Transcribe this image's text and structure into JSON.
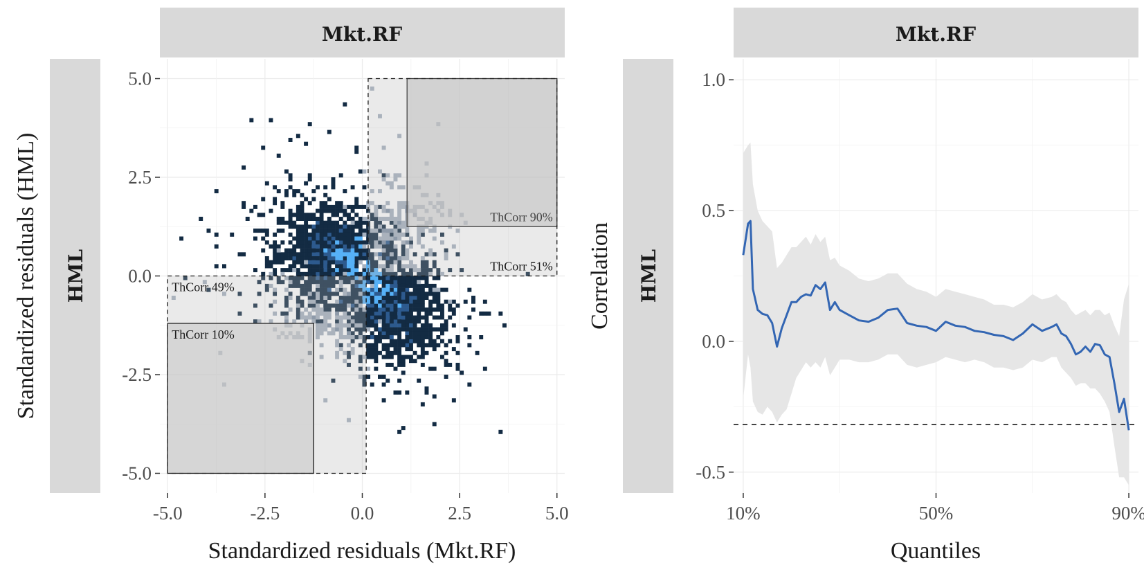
{
  "chart_data": [
    {
      "type": "heatmap",
      "strip_top": "Mkt.RF",
      "strip_side": "HML",
      "xlabel": "Standardized residuals (Mkt.RF)",
      "ylabel": "Standardized residuals (HML)",
      "xlim": [
        -5.2,
        5.2
      ],
      "ylim": [
        -5.5,
        5.5
      ],
      "x_ticks": [
        -5.0,
        -2.5,
        0.0,
        2.5,
        5.0
      ],
      "x_tick_labels": [
        "-5.0",
        "-2.5",
        "0.0",
        "2.5",
        "5.0"
      ],
      "y_ticks": [
        -5.0,
        -2.5,
        0.0,
        2.5,
        5.0
      ],
      "y_tick_labels": [
        "-5.0",
        "-2.5",
        "0.0",
        "2.5",
        "5.0"
      ],
      "grid": true,
      "colors": {
        "dark": "#132b43",
        "mid": "#2d5a8e",
        "bright": "#56b1f7",
        "grey": "#8090a6",
        "lightgrey": "#a7b2c0"
      },
      "regions": [
        {
          "label": "ThCorr 90%",
          "x": [
            1.15,
            5.0
          ],
          "y": [
            1.25,
            5.0
          ],
          "style": "solid"
        },
        {
          "label": "ThCorr 51%",
          "x": [
            0.15,
            5.0
          ],
          "y": [
            0.0,
            5.0
          ],
          "style": "dashed"
        },
        {
          "label": "ThCorr 49%",
          "x": [
            -5.0,
            0.1
          ],
          "y": [
            -5.0,
            0.0
          ],
          "style": "dashed"
        },
        {
          "label": "ThCorr 10%",
          "x": [
            -5.0,
            -1.25
          ],
          "y": [
            -5.0,
            -1.2
          ],
          "style": "solid"
        }
      ],
      "clusters": [
        {
          "cx": -0.9,
          "cy": 0.65,
          "sx": 0.65,
          "sy": 0.55,
          "n": 900,
          "tone": "dark"
        },
        {
          "cx": 0.85,
          "cy": -0.9,
          "sx": 0.55,
          "sy": 0.6,
          "n": 850,
          "tone": "dark"
        },
        {
          "cx": -1.4,
          "cy": 0.9,
          "sx": 1.0,
          "sy": 1.0,
          "n": 220,
          "tone": "dark"
        },
        {
          "cx": 1.3,
          "cy": -1.2,
          "sx": 0.9,
          "sy": 1.0,
          "n": 200,
          "tone": "dark"
        },
        {
          "cx": 0.7,
          "cy": 0.9,
          "sx": 0.65,
          "sy": 0.7,
          "n": 380,
          "tone": "grey"
        },
        {
          "cx": -0.7,
          "cy": -0.75,
          "sx": 0.7,
          "sy": 0.6,
          "n": 360,
          "tone": "grey"
        },
        {
          "cx": -0.3,
          "cy": 0.45,
          "sx": 0.25,
          "sy": 0.25,
          "n": 40,
          "tone": "mid"
        },
        {
          "cx": 0.35,
          "cy": -0.35,
          "sx": 0.25,
          "sy": 0.25,
          "n": 40,
          "tone": "mid"
        }
      ],
      "outliers": [
        [
          -2.9,
          3.95,
          "dark"
        ],
        [
          -2.4,
          3.95,
          "dark"
        ],
        [
          -1.4,
          3.85,
          "dark"
        ],
        [
          -0.5,
          4.35,
          "dark"
        ],
        [
          -0.9,
          3.6,
          "dark"
        ],
        [
          -1.7,
          3.5,
          "dark"
        ],
        [
          -2.2,
          3.0,
          "dark"
        ],
        [
          -3.1,
          2.75,
          "dark"
        ],
        [
          -4.2,
          1.45,
          "dark"
        ],
        [
          -3.95,
          1.1,
          "dark"
        ],
        [
          -4.7,
          0.95,
          "dark"
        ],
        [
          -3.8,
          0.75,
          "dark"
        ],
        [
          -3.6,
          0.2,
          "dark"
        ],
        [
          -3.2,
          0.6,
          "dark"
        ],
        [
          -0.2,
          3.1,
          "dark"
        ],
        [
          0.0,
          2.2,
          "dark"
        ],
        [
          -0.6,
          2.5,
          "dark"
        ],
        [
          1.4,
          2.2,
          "grey"
        ],
        [
          1.6,
          2.5,
          "lightgrey"
        ],
        [
          2.0,
          1.9,
          "lightgrey"
        ],
        [
          2.2,
          1.5,
          "lightgrey"
        ],
        [
          2.6,
          1.3,
          "lightgrey"
        ],
        [
          0.9,
          3.5,
          "grey"
        ],
        [
          0.4,
          4.0,
          "lightgrey"
        ],
        [
          0.2,
          4.8,
          "lightgrey"
        ],
        [
          0.55,
          3.2,
          "grey"
        ],
        [
          -4.9,
          -0.55,
          "lightgrey"
        ],
        [
          -4.1,
          -0.15,
          "lightgrey"
        ],
        [
          -3.6,
          -0.5,
          "lightgrey"
        ],
        [
          -3.7,
          -2.0,
          "lightgrey"
        ],
        [
          -3.6,
          -2.75,
          "lightgrey"
        ],
        [
          -2.0,
          -1.6,
          "lightgrey"
        ],
        [
          -1.6,
          -2.15,
          "lightgrey"
        ],
        [
          -1.7,
          -1.5,
          "grey"
        ],
        [
          -1.1,
          -1.3,
          "grey"
        ],
        [
          -1.0,
          -3.2,
          "lightgrey"
        ],
        [
          -0.4,
          -3.7,
          "lightgrey"
        ],
        [
          -0.1,
          -2.6,
          "lightgrey"
        ],
        [
          0.1,
          -2.4,
          "grey"
        ],
        [
          0.5,
          -3.2,
          "dark"
        ],
        [
          0.9,
          -3.0,
          "dark"
        ],
        [
          1.0,
          -3.85,
          "dark"
        ],
        [
          1.5,
          -3.3,
          "dark"
        ],
        [
          1.6,
          -2.9,
          "dark"
        ],
        [
          1.8,
          -3.1,
          "dark"
        ],
        [
          2.1,
          -2.6,
          "dark"
        ],
        [
          2.2,
          -1.7,
          "dark"
        ],
        [
          2.6,
          -1.4,
          "dark"
        ],
        [
          2.7,
          -2.75,
          "dark"
        ],
        [
          3.1,
          -2.35,
          "dark"
        ],
        [
          3.1,
          -1.0,
          "dark"
        ],
        [
          2.9,
          -0.6,
          "dark"
        ],
        [
          3.5,
          -4.0,
          "dark"
        ],
        [
          1.7,
          -1.6,
          "dark"
        ],
        [
          0.3,
          -2.8,
          "dark"
        ],
        [
          2.4,
          -0.9,
          "dark"
        ]
      ]
    },
    {
      "type": "line",
      "strip_top": "Mkt.RF",
      "strip_side": "HML",
      "xlabel": "Quantiles",
      "ylabel": "Correlation",
      "xlim": [
        0.08,
        0.92
      ],
      "ylim": [
        -0.58,
        1.08
      ],
      "x_ticks": [
        0.1,
        0.5,
        0.9
      ],
      "x_tick_labels": [
        "10%",
        "50%",
        "90%"
      ],
      "y_ticks": [
        -0.5,
        0.0,
        0.5,
        1.0
      ],
      "y_tick_labels": [
        "-0.5",
        "0.0",
        "0.5",
        "1.0"
      ],
      "grid": true,
      "line_color": "#3366b3",
      "band_color": "#e6e6e6",
      "reference_line": {
        "y": -0.318,
        "style": "dashed"
      },
      "x": [
        0.1,
        0.11,
        0.115,
        0.12,
        0.13,
        0.14,
        0.15,
        0.16,
        0.17,
        0.18,
        0.19,
        0.2,
        0.21,
        0.22,
        0.23,
        0.24,
        0.25,
        0.26,
        0.27,
        0.28,
        0.29,
        0.3,
        0.32,
        0.34,
        0.36,
        0.38,
        0.4,
        0.42,
        0.44,
        0.46,
        0.48,
        0.5,
        0.52,
        0.54,
        0.56,
        0.58,
        0.6,
        0.62,
        0.64,
        0.66,
        0.68,
        0.7,
        0.72,
        0.74,
        0.75,
        0.76,
        0.77,
        0.78,
        0.79,
        0.8,
        0.81,
        0.82,
        0.83,
        0.84,
        0.85,
        0.86,
        0.87,
        0.88,
        0.89,
        0.9
      ],
      "y": [
        0.33,
        0.45,
        0.46,
        0.2,
        0.12,
        0.105,
        0.1,
        0.07,
        -0.02,
        0.05,
        0.1,
        0.15,
        0.15,
        0.17,
        0.18,
        0.175,
        0.215,
        0.2,
        0.225,
        0.12,
        0.15,
        0.12,
        0.1,
        0.08,
        0.075,
        0.09,
        0.12,
        0.125,
        0.07,
        0.06,
        0.055,
        0.04,
        0.075,
        0.06,
        0.055,
        0.04,
        0.035,
        0.025,
        0.02,
        0.005,
        0.03,
        0.065,
        0.04,
        0.055,
        0.065,
        0.03,
        0.02,
        -0.01,
        -0.05,
        -0.04,
        -0.02,
        -0.04,
        -0.01,
        -0.015,
        -0.05,
        -0.06,
        -0.16,
        -0.27,
        -0.22,
        -0.34
      ],
      "lower": [
        -0.22,
        -0.05,
        -0.1,
        -0.23,
        -0.27,
        -0.28,
        -0.25,
        -0.27,
        -0.31,
        -0.28,
        -0.26,
        -0.2,
        -0.14,
        -0.11,
        -0.08,
        -0.1,
        -0.08,
        -0.1,
        -0.06,
        -0.13,
        -0.1,
        -0.07,
        -0.07,
        -0.08,
        -0.08,
        -0.07,
        -0.05,
        -0.05,
        -0.09,
        -0.1,
        -0.09,
        -0.08,
        -0.06,
        -0.07,
        -0.08,
        -0.07,
        -0.08,
        -0.1,
        -0.1,
        -0.11,
        -0.1,
        -0.07,
        -0.08,
        -0.06,
        -0.06,
        -0.1,
        -0.12,
        -0.14,
        -0.17,
        -0.16,
        -0.16,
        -0.18,
        -0.18,
        -0.2,
        -0.23,
        -0.27,
        -0.4,
        -0.52,
        -0.52,
        -0.55
      ],
      "upper": [
        0.72,
        0.75,
        0.76,
        0.6,
        0.5,
        0.46,
        0.44,
        0.42,
        0.28,
        0.3,
        0.33,
        0.36,
        0.36,
        0.38,
        0.4,
        0.37,
        0.41,
        0.38,
        0.4,
        0.31,
        0.32,
        0.29,
        0.27,
        0.24,
        0.23,
        0.24,
        0.26,
        0.26,
        0.22,
        0.2,
        0.19,
        0.17,
        0.2,
        0.19,
        0.18,
        0.17,
        0.16,
        0.14,
        0.14,
        0.13,
        0.15,
        0.18,
        0.16,
        0.17,
        0.18,
        0.16,
        0.15,
        0.12,
        0.1,
        0.11,
        0.12,
        0.1,
        0.12,
        0.12,
        0.1,
        0.11,
        0.06,
        0.02,
        0.16,
        0.22
      ]
    }
  ]
}
